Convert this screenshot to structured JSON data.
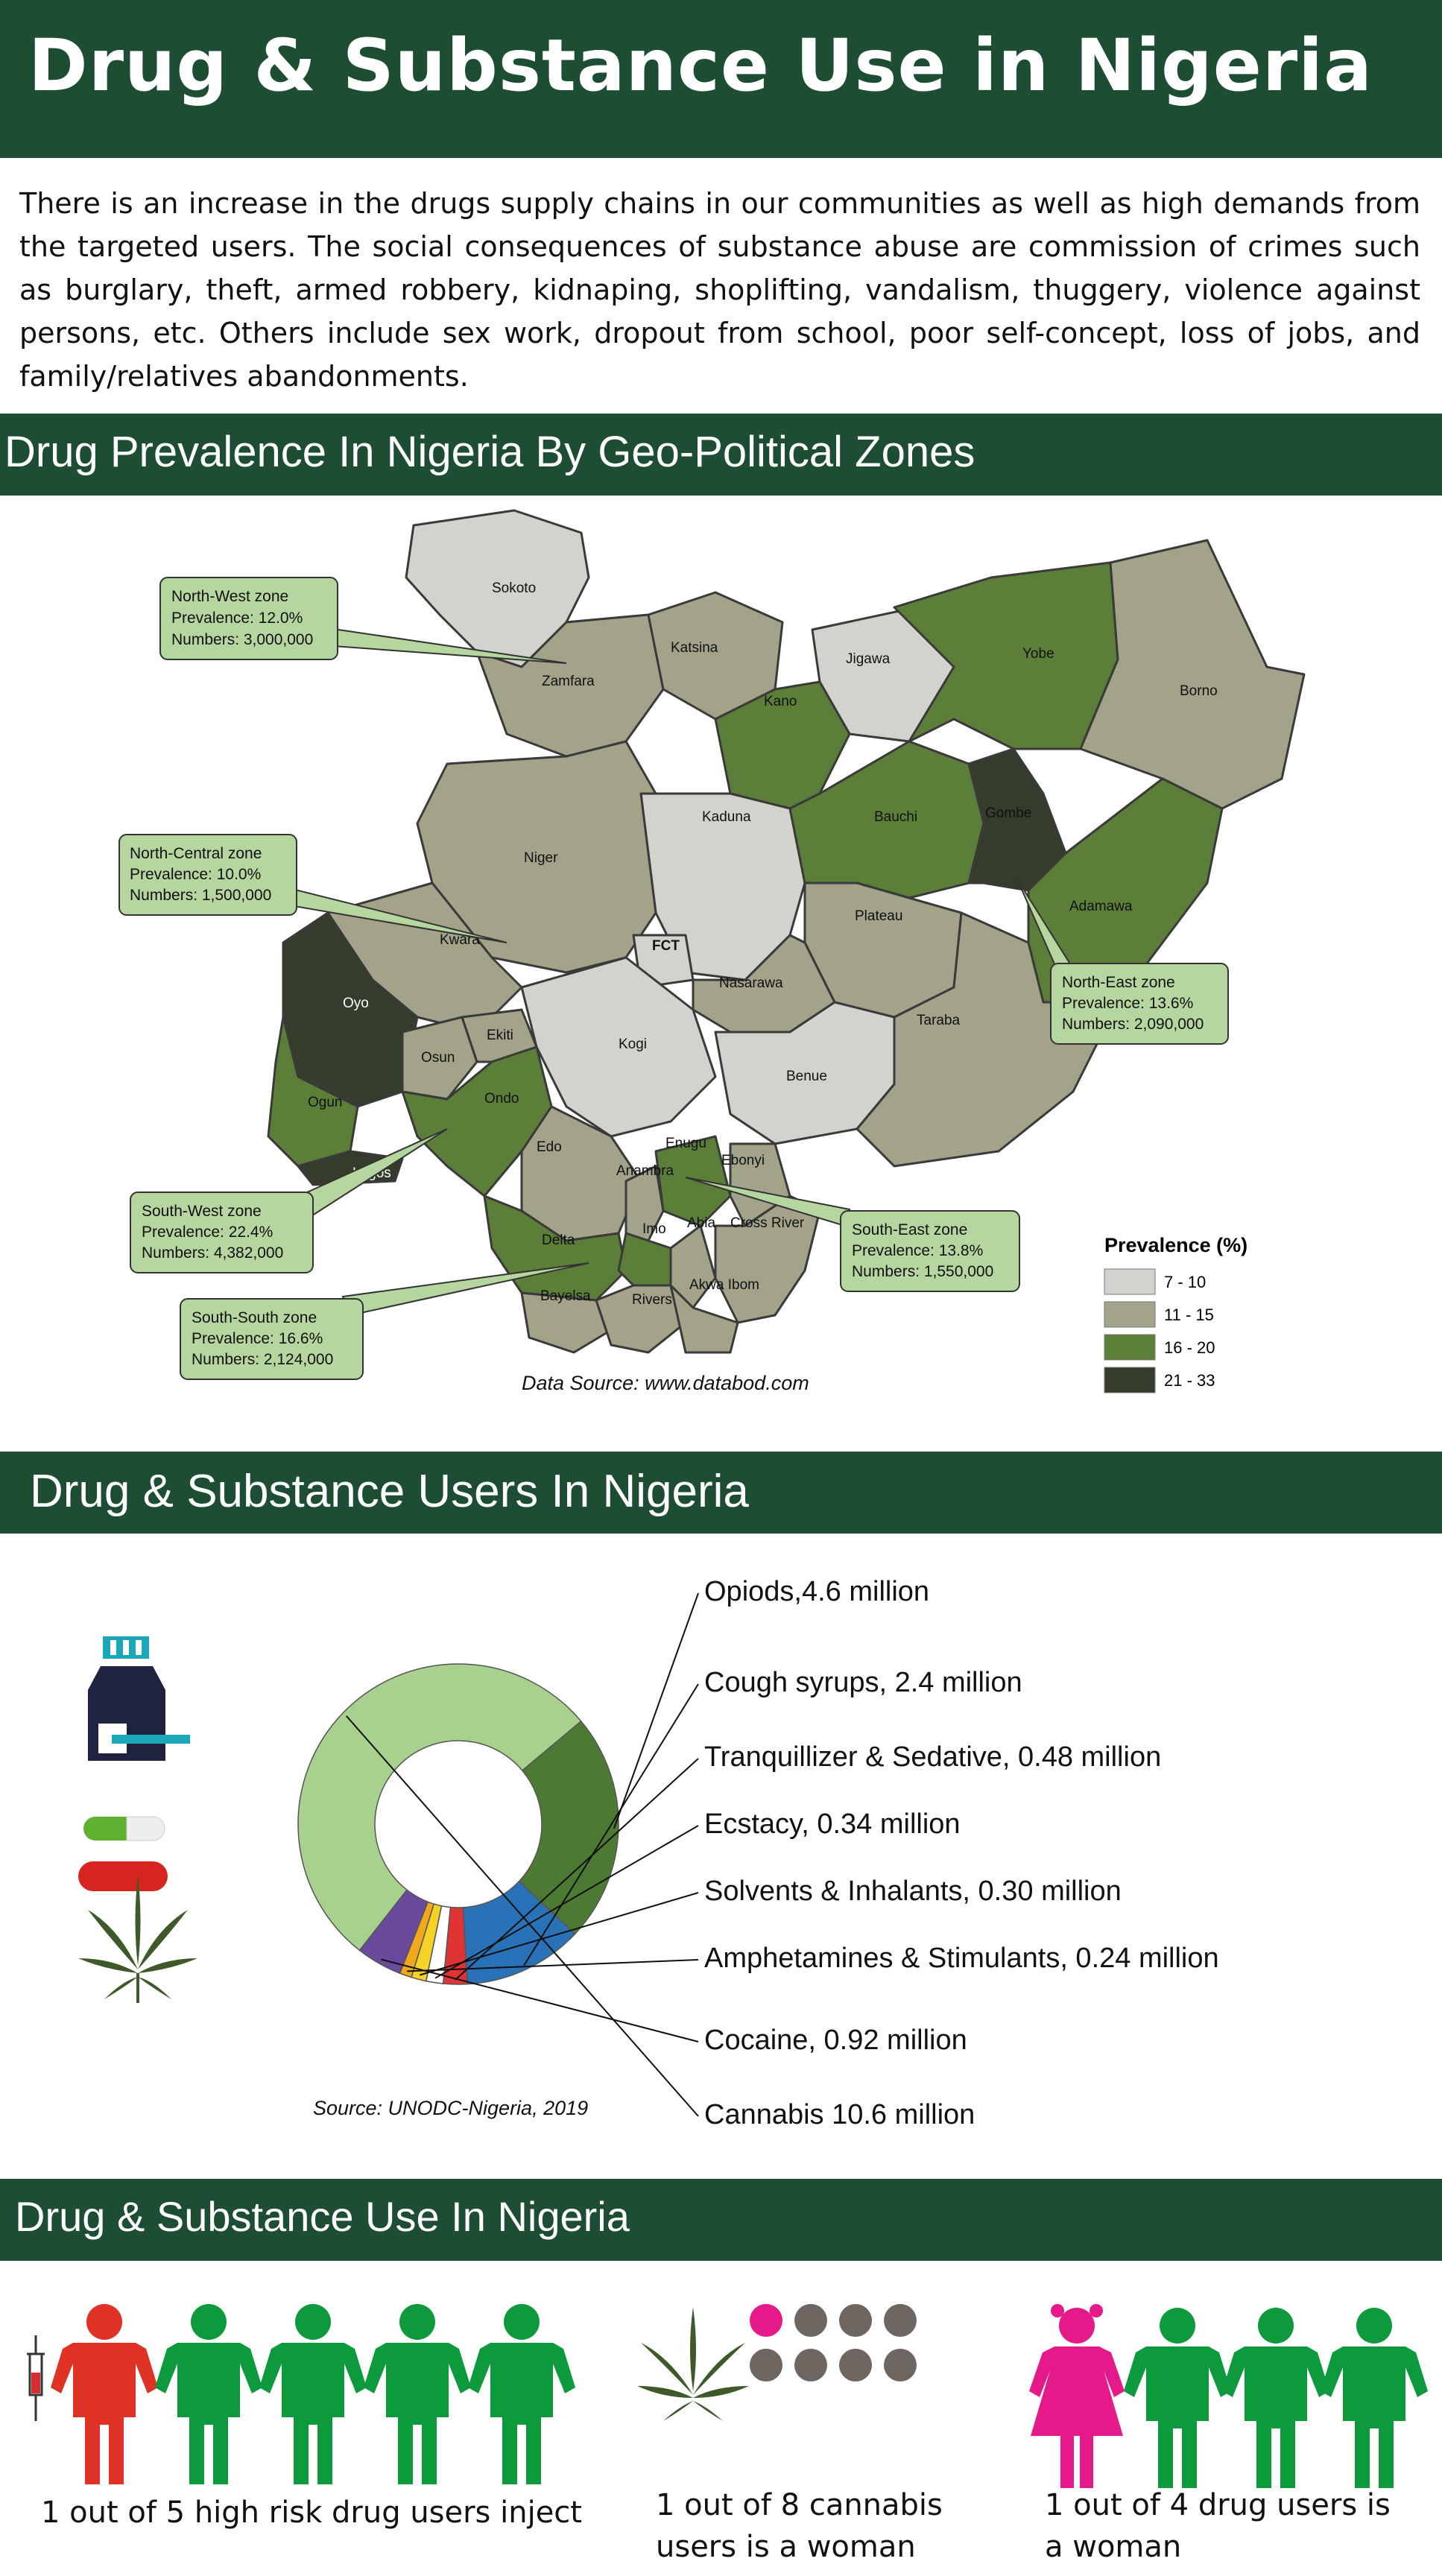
{
  "header": {
    "title": "Drug & Substance Use in Nigeria"
  },
  "intro": "There is an increase in the drugs supply chains in our communities as well as high demands from the targeted users. The social consequences of substance abuse are commission of crimes such as burglary, theft, armed robbery, kidnaping, shoplifting, vandalism, thuggery, violence against persons, etc. Others include sex work, dropout from school, poor self-concept, loss of jobs, and family/relatives abandonments.",
  "map_section": {
    "title": "Drug Prevalence In Nigeria By Geo-Political Zones",
    "source": "Data Source: www.databod.com",
    "states": [
      "Sokoto",
      "Zamfara",
      "Katsina",
      "Jigawa",
      "Yobe",
      "Borno",
      "Kano",
      "Kaduna",
      "Bauchi",
      "Gombe",
      "Niger",
      "Kwara",
      "FCT",
      "Plateau",
      "Adamawa",
      "Nasarawa",
      "Oyo",
      "Osun",
      "Ekiti",
      "Kogi",
      "Benue",
      "Taraba",
      "Ogun",
      "Ondo",
      "Lagos",
      "Edo",
      "Enugu",
      "Ebonyi",
      "Anambra",
      "Delta",
      "Imo",
      "Abia",
      "Cross River",
      "Bayelsa",
      "Rivers",
      "Akwa Ibom"
    ],
    "zones": [
      {
        "name": "North-West zone",
        "prevalence": "Prevalence: 12.0%",
        "numbers": "Numbers: 3,000,000"
      },
      {
        "name": "North-Central zone",
        "prevalence": "Prevalence: 10.0%",
        "numbers": "Numbers: 1,500,000"
      },
      {
        "name": "North-East zone",
        "prevalence": "Prevalence: 13.6%",
        "numbers": "Numbers: 2,090,000"
      },
      {
        "name": "South-West zone",
        "prevalence": "Prevalence: 22.4%",
        "numbers": "Numbers: 4,382,000"
      },
      {
        "name": "South-East zone",
        "prevalence": "Prevalence: 13.8%",
        "numbers": "Numbers: 1,550,000"
      },
      {
        "name": "South-South zone",
        "prevalence": "Prevalence: 16.6%",
        "numbers": "Numbers: 2,124,000"
      }
    ],
    "legend": {
      "title": "Prevalence (%)",
      "items": [
        {
          "label": "7 - 10",
          "color": "#d3d3cd"
        },
        {
          "label": "11 - 15",
          "color": "#a3a38a"
        },
        {
          "label": "16 - 20",
          "color": "#5b7f38"
        },
        {
          "label": "21 - 33",
          "color": "#343d2c"
        }
      ]
    }
  },
  "users_section": {
    "title": "Drug & Substance Users In Nigeria",
    "source": "Source: UNODC-Nigeria, 2019",
    "icons": [
      "cough-syrup-icon",
      "capsule-icon",
      "cannabis-leaf-icon"
    ],
    "chart_data": {
      "type": "pie",
      "categories": [
        "Opiods",
        "Cough syrups",
        "Tranquillizer & Sedative",
        "Ecstacy",
        "Solvents & Inhalants",
        "Amphetamines & Stimulants",
        "Cocaine",
        "Cannabis"
      ],
      "values": [
        4.6,
        2.4,
        0.48,
        0.34,
        0.3,
        0.24,
        0.92,
        10.6
      ],
      "labels": [
        "Opiods,4.6 million",
        "Cough syrups, 2.4 million",
        "Tranquillizer & Sedative, 0.48 million",
        "Ecstacy, 0.34 million",
        "Solvents & Inhalants, 0.30 million",
        "Amphetamines & Stimulants, 0.24 million",
        "Cocaine, 0.92 million",
        "Cannabis 10.6 million"
      ],
      "colors": [
        "#4d7a32",
        "#2a72b8",
        "#e03434",
        "#ffffff",
        "#f5d225",
        "#f2a81d",
        "#6a4a9c",
        "#a9d18e"
      ]
    }
  },
  "use_section": {
    "title": "Drug & Substance Use In Nigeria",
    "stats": [
      {
        "text": "1 out of 5 high risk drug users inject"
      },
      {
        "text": "1 out of 8 cannabis users is a woman"
      },
      {
        "text": "1 out of 4 drug users is a woman"
      }
    ],
    "colors": {
      "green": "#0d9a3d",
      "red": "#e03125",
      "pink": "#e6198a",
      "grey": "#6e6660"
    }
  }
}
